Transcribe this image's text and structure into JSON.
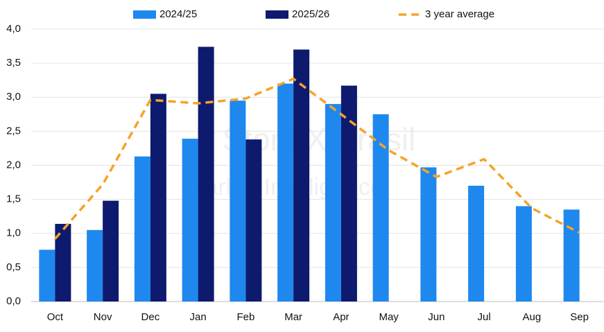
{
  "chart_data": {
    "type": "bar",
    "watermark": [
      "StoneX Brasil",
      "Market Intelligence"
    ],
    "categories": [
      "Oct",
      "Nov",
      "Dec",
      "Jan",
      "Feb",
      "Mar",
      "Apr",
      "May",
      "Jun",
      "Jul",
      "Aug",
      "Sep"
    ],
    "series": [
      {
        "name": "2024/25",
        "type": "bar",
        "color": "#1e88ee",
        "values": [
          0.76,
          1.05,
          2.13,
          2.39,
          2.95,
          3.2,
          2.9,
          2.75,
          1.97,
          1.7,
          1.4,
          1.35
        ]
      },
      {
        "name": "2025/26",
        "type": "bar",
        "color": "#0d1a6e",
        "values": [
          1.14,
          1.48,
          3.05,
          3.74,
          2.38,
          3.7,
          3.17,
          null,
          null,
          null,
          null,
          null
        ]
      },
      {
        "name": "3 year average",
        "type": "line",
        "dashed": true,
        "color": "#f5a327",
        "values": [
          0.92,
          1.72,
          2.96,
          2.91,
          2.98,
          3.27,
          2.75,
          2.22,
          1.83,
          2.09,
          1.37,
          1.01
        ]
      }
    ],
    "ylim": [
      0,
      4
    ],
    "yticks": [
      {
        "value": 0,
        "label": "0,0"
      },
      {
        "value": 0.5,
        "label": "0,5"
      },
      {
        "value": 1,
        "label": "1,0"
      },
      {
        "value": 1.5,
        "label": "1,5"
      },
      {
        "value": 2,
        "label": "2,0"
      },
      {
        "value": 2.5,
        "label": "2,5"
      },
      {
        "value": 3,
        "label": "3,0"
      },
      {
        "value": 3.5,
        "label": "3,5"
      },
      {
        "value": 4,
        "label": "4,0"
      }
    ],
    "grid": true,
    "legend": "top"
  }
}
